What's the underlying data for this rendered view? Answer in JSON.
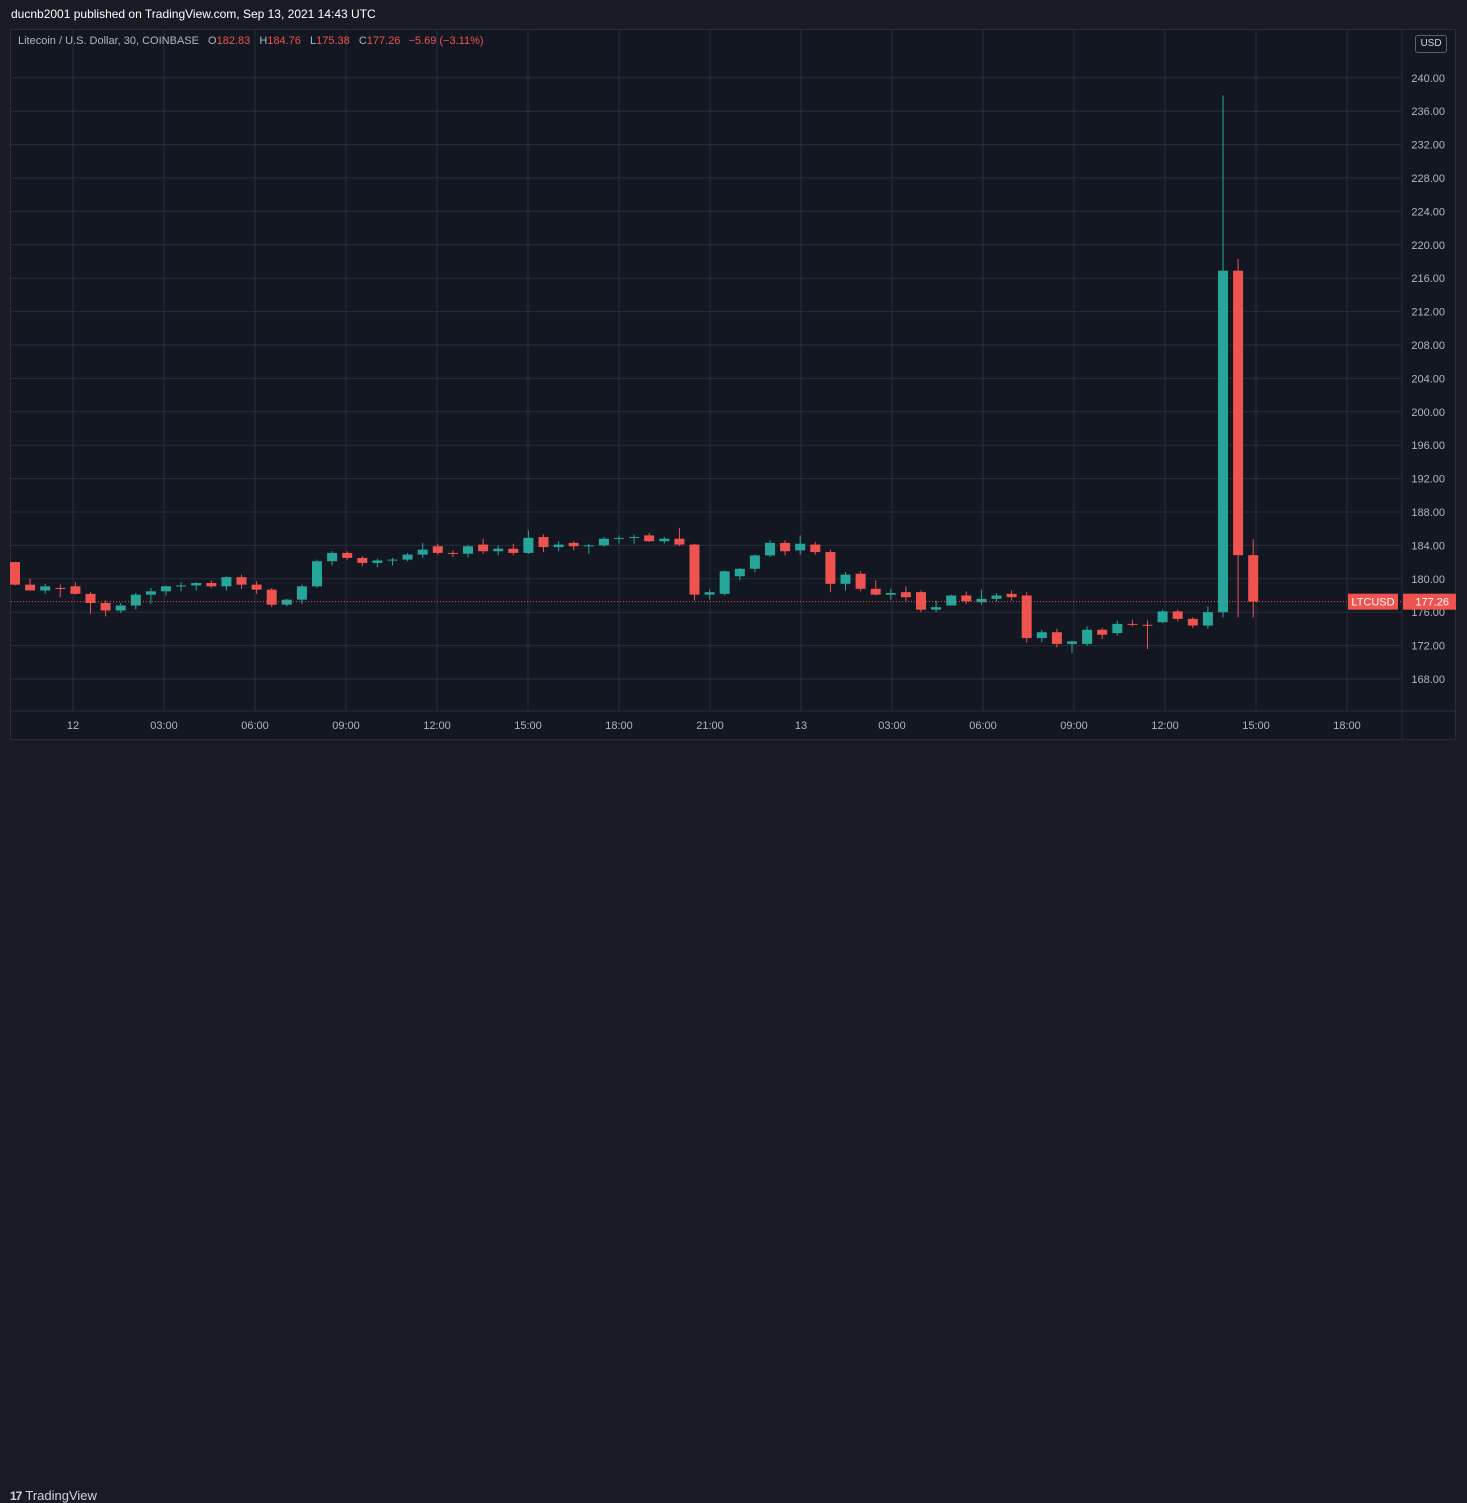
{
  "header": {
    "publisher_text": "ducnb2001 published on TradingView.com, Sep 13, 2021 14:43 UTC"
  },
  "legend": {
    "symbol": "Litecoin / U.S. Dollar, 30, COINBASE",
    "o_label": "O",
    "o_value": "182.83",
    "h_label": "H",
    "h_value": "184.76",
    "l_label": "L",
    "l_value": "175.38",
    "c_label": "C",
    "c_value": "177.26",
    "change": "−5.69 (−3.11%)"
  },
  "currency_button": "USD",
  "footer": {
    "brand": "TradingView",
    "logo_mark": "17"
  },
  "colors": {
    "up": "#26a69a",
    "down": "#ef5350",
    "grid": "#2a2e39",
    "background": "#131722"
  },
  "chart_data": {
    "type": "candlestick",
    "symbol": "LTCUSD",
    "interval": "30",
    "exchange": "COINBASE",
    "ylim": [
      165.0,
      242.0
    ],
    "y_ticks": [
      168,
      172,
      176,
      180,
      184,
      188,
      192,
      196,
      200,
      204,
      208,
      212,
      216,
      220,
      224,
      228,
      232,
      236,
      240
    ],
    "x_ticks": [
      "12",
      "03:00",
      "06:00",
      "09:00",
      "12:00",
      "15:00",
      "18:00",
      "21:00",
      "13",
      "03:00",
      "06:00",
      "09:00",
      "12:00",
      "15:00",
      "18:00"
    ],
    "last_price_label": "LTCUSD",
    "last_price": 177.26,
    "grid": true,
    "candles": [
      [
        182.0,
        182.0,
        179.2,
        179.3
      ],
      [
        179.3,
        180.0,
        178.6,
        178.6
      ],
      [
        178.6,
        179.4,
        178.2,
        179.1
      ],
      [
        178.9,
        179.3,
        177.8,
        178.8
      ],
      [
        179.1,
        179.6,
        178.1,
        178.2
      ],
      [
        178.2,
        178.4,
        175.8,
        177.1
      ],
      [
        177.1,
        177.4,
        175.5,
        176.2
      ],
      [
        176.2,
        177.1,
        175.9,
        176.8
      ],
      [
        176.8,
        178.3,
        176.3,
        178.1
      ],
      [
        178.1,
        178.9,
        177.0,
        178.5
      ],
      [
        178.5,
        179.2,
        178.0,
        179.1
      ],
      [
        179.1,
        179.6,
        178.5,
        179.2
      ],
      [
        179.2,
        179.6,
        178.6,
        179.5
      ],
      [
        179.5,
        179.8,
        178.9,
        179.1
      ],
      [
        179.1,
        180.3,
        178.6,
        180.2
      ],
      [
        180.2,
        180.5,
        178.8,
        179.3
      ],
      [
        179.3,
        179.7,
        178.2,
        178.7
      ],
      [
        178.7,
        178.9,
        176.6,
        176.9
      ],
      [
        176.9,
        177.6,
        176.7,
        177.5
      ],
      [
        177.5,
        179.3,
        177.0,
        179.1
      ],
      [
        179.1,
        182.3,
        178.9,
        182.1
      ],
      [
        182.1,
        183.3,
        181.6,
        183.1
      ],
      [
        183.1,
        183.3,
        182.3,
        182.5
      ],
      [
        182.5,
        182.7,
        181.5,
        181.9
      ],
      [
        181.9,
        182.4,
        181.4,
        182.2
      ],
      [
        182.2,
        182.5,
        181.6,
        182.3
      ],
      [
        182.3,
        183.1,
        182.1,
        182.9
      ],
      [
        182.9,
        184.3,
        182.5,
        183.5
      ],
      [
        183.9,
        184.2,
        182.9,
        183.1
      ],
      [
        183.1,
        183.4,
        182.6,
        183.0
      ],
      [
        183.0,
        184.1,
        182.6,
        183.9
      ],
      [
        184.1,
        184.8,
        183.0,
        183.3
      ],
      [
        183.3,
        184.0,
        182.8,
        183.6
      ],
      [
        183.6,
        184.2,
        182.8,
        183.1
      ],
      [
        183.1,
        185.8,
        183.0,
        184.9
      ],
      [
        185.0,
        185.3,
        183.2,
        183.8
      ],
      [
        183.8,
        184.5,
        183.3,
        184.1
      ],
      [
        184.3,
        184.5,
        183.4,
        183.9
      ],
      [
        183.9,
        184.2,
        183.0,
        184.0
      ],
      [
        184.0,
        185.0,
        183.8,
        184.8
      ],
      [
        184.8,
        185.2,
        184.2,
        184.9
      ],
      [
        184.9,
        185.3,
        184.2,
        185.0
      ],
      [
        185.2,
        185.5,
        184.4,
        184.5
      ],
      [
        184.5,
        185.0,
        184.2,
        184.8
      ],
      [
        184.8,
        186.1,
        183.9,
        184.1
      ],
      [
        184.1,
        184.2,
        177.4,
        178.1
      ],
      [
        178.1,
        178.7,
        177.5,
        178.4
      ],
      [
        178.2,
        181.0,
        178.0,
        180.9
      ],
      [
        180.3,
        181.3,
        179.8,
        181.2
      ],
      [
        181.2,
        182.9,
        180.8,
        182.8
      ],
      [
        182.8,
        184.6,
        182.6,
        184.3
      ],
      [
        184.3,
        184.6,
        182.8,
        183.3
      ],
      [
        183.4,
        185.2,
        182.9,
        184.2
      ],
      [
        184.1,
        184.4,
        182.9,
        183.2
      ],
      [
        183.2,
        183.5,
        178.4,
        179.4
      ],
      [
        179.4,
        180.8,
        178.6,
        180.5
      ],
      [
        180.6,
        180.9,
        178.5,
        178.8
      ],
      [
        178.8,
        179.8,
        178.0,
        178.1
      ],
      [
        178.1,
        178.8,
        177.5,
        178.3
      ],
      [
        178.4,
        179.1,
        177.3,
        177.8
      ],
      [
        178.4,
        178.6,
        176.0,
        176.3
      ],
      [
        176.3,
        177.4,
        176.0,
        176.6
      ],
      [
        176.8,
        178.1,
        176.8,
        178.0
      ],
      [
        178.0,
        178.5,
        177.0,
        177.3
      ],
      [
        177.2,
        178.7,
        176.9,
        177.6
      ],
      [
        177.6,
        178.3,
        177.3,
        178.0
      ],
      [
        178.2,
        178.6,
        177.4,
        177.8
      ],
      [
        178.0,
        178.4,
        172.4,
        172.9
      ],
      [
        172.9,
        173.9,
        172.4,
        173.6
      ],
      [
        173.6,
        174.0,
        171.8,
        172.2
      ],
      [
        172.2,
        172.6,
        171.1,
        172.5
      ],
      [
        172.2,
        174.3,
        172.0,
        173.9
      ],
      [
        173.9,
        174.1,
        172.8,
        173.3
      ],
      [
        173.5,
        175.0,
        173.2,
        174.6
      ],
      [
        174.6,
        175.1,
        174.3,
        174.5
      ],
      [
        174.5,
        175.0,
        171.6,
        174.4
      ],
      [
        174.8,
        176.3,
        174.7,
        176.1
      ],
      [
        176.1,
        176.3,
        174.9,
        175.2
      ],
      [
        175.2,
        175.4,
        174.1,
        174.4
      ],
      [
        174.4,
        176.7,
        174.0,
        176.0
      ],
      [
        176.0,
        237.9,
        175.4,
        216.9
      ],
      [
        216.9,
        218.3,
        175.4,
        182.83
      ],
      [
        182.83,
        184.76,
        175.38,
        177.26
      ]
    ]
  }
}
